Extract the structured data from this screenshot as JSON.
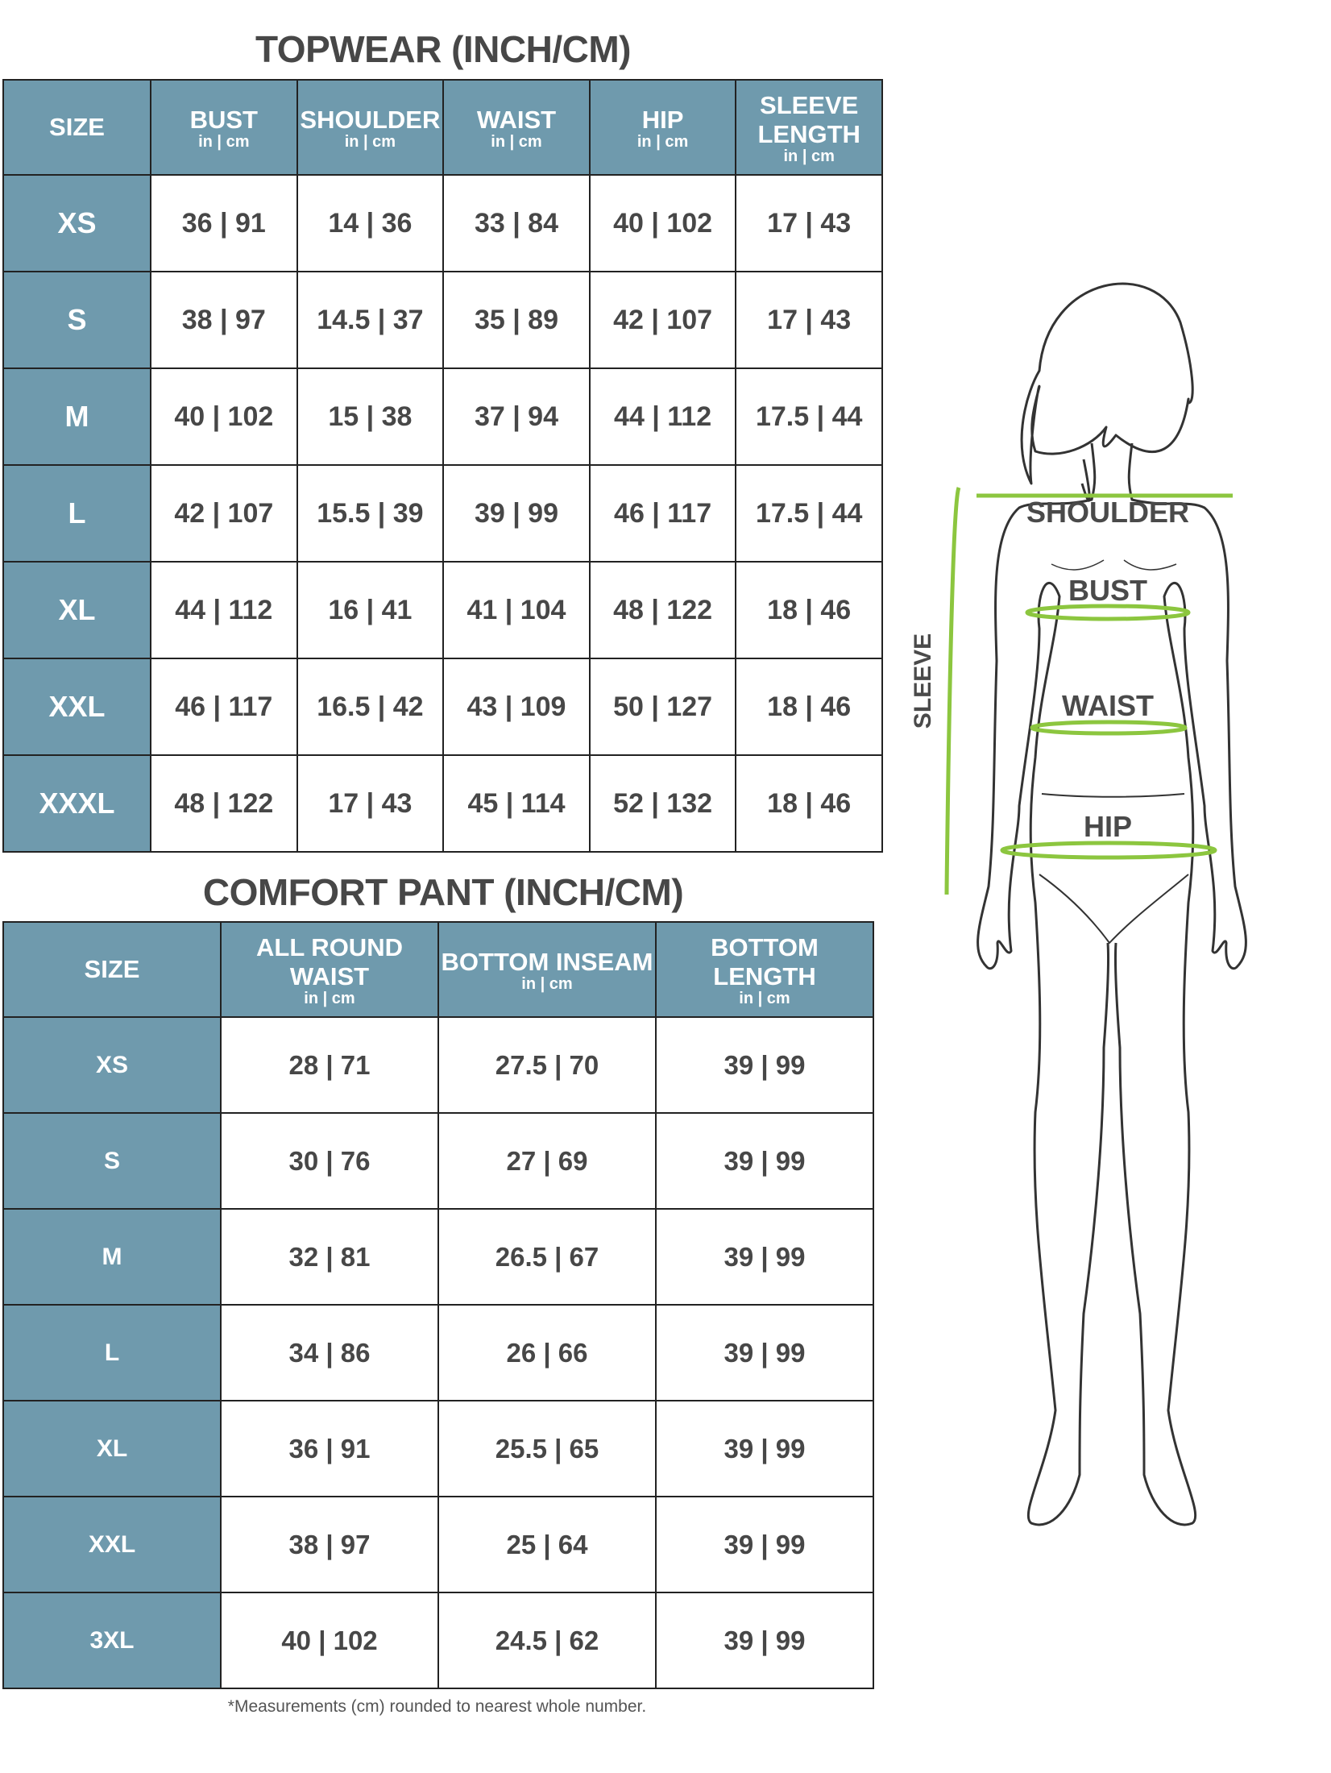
{
  "topwear": {
    "title": "TOPWEAR (INCH/CM)",
    "headers": [
      {
        "label": "SIZE",
        "unit": ""
      },
      {
        "label": "BUST",
        "unit": "in | cm"
      },
      {
        "label": "SHOULDER",
        "unit": "in | cm"
      },
      {
        "label": "WAIST",
        "unit": "in | cm"
      },
      {
        "label": "HIP",
        "unit": "in | cm"
      },
      {
        "label": "SLEEVE LENGTH",
        "unit": "in | cm"
      }
    ],
    "rows": [
      [
        "XS",
        "36 | 91",
        "14 | 36",
        "33 | 84",
        "40 | 102",
        "17 | 43"
      ],
      [
        "S",
        "38 | 97",
        "14.5 | 37",
        "35 | 89",
        "42 | 107",
        "17 | 43"
      ],
      [
        "M",
        "40 | 102",
        "15 | 38",
        "37 | 94",
        "44 | 112",
        "17.5 | 44"
      ],
      [
        "L",
        "42 | 107",
        "15.5 | 39",
        "39 | 99",
        "46 | 117",
        "17.5 | 44"
      ],
      [
        "XL",
        "44 | 112",
        "16 | 41",
        "41 | 104",
        "48 | 122",
        "18 | 46"
      ],
      [
        "XXL",
        "46 | 117",
        "16.5 | 42",
        "43 | 109",
        "50 | 127",
        "18 | 46"
      ],
      [
        "XXXL",
        "48 | 122",
        "17 | 43",
        "45 | 114",
        "52 | 132",
        "18 | 46"
      ]
    ]
  },
  "pant": {
    "title": "COMFORT PANT (INCH/CM)",
    "headers": [
      {
        "label": "SIZE",
        "unit": ""
      },
      {
        "label": "ALL ROUND WAIST",
        "unit": "in | cm"
      },
      {
        "label": "BOTTOM INSEAM",
        "unit": "in | cm"
      },
      {
        "label": "BOTTOM LENGTH",
        "unit": "in | cm"
      }
    ],
    "rows": [
      [
        "XS",
        "28 | 71",
        "27.5 | 70",
        "39 | 99"
      ],
      [
        "S",
        "30 | 76",
        "27 | 69",
        "39 | 99"
      ],
      [
        "M",
        "32 | 81",
        "26.5 | 67",
        "39 | 99"
      ],
      [
        "L",
        "34 | 86",
        "26 | 66",
        "39 | 99"
      ],
      [
        "XL",
        "36 | 91",
        "25.5 | 65",
        "39 | 99"
      ],
      [
        "XXL",
        "38 | 97",
        "25 | 64",
        "39 | 99"
      ],
      [
        "3XL",
        "40 | 102",
        "24.5 | 62",
        "39 | 99"
      ]
    ]
  },
  "figure": {
    "labels": {
      "shoulder": "SHOULDER",
      "bust": "BUST",
      "waist": "WAIST",
      "hip": "HIP",
      "sleeve": "SLEEVE"
    }
  },
  "footnote": "*Measurements (cm) rounded to nearest whole number.",
  "colors": {
    "header": "#6f9aad",
    "measure_line": "#8cc63f",
    "text": "#474747"
  }
}
